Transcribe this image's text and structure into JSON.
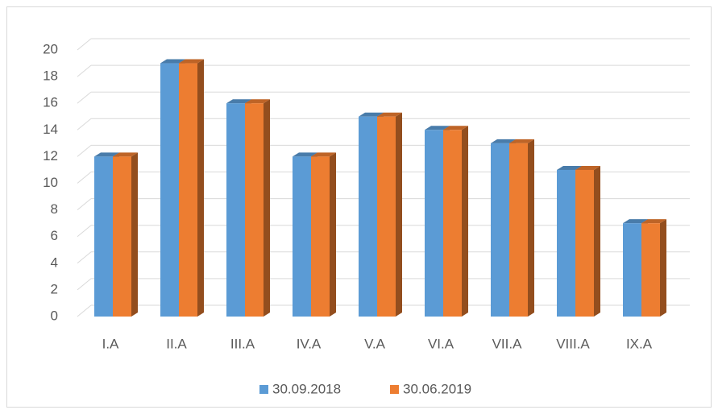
{
  "chart_data": {
    "type": "bar3d",
    "categories": [
      "I.A",
      "II.A",
      "III.A",
      "IV.A",
      "V.A",
      "VI.A",
      "VII.A",
      "VIII.A",
      "IX.A"
    ],
    "series": [
      {
        "name": "30.09.2018",
        "color": "#5b9bd5",
        "values": [
          12,
          19,
          16,
          12,
          15,
          14,
          13,
          11,
          7
        ]
      },
      {
        "name": "30.06.2019",
        "color": "#ed7d31",
        "values": [
          12,
          19,
          16,
          12,
          15,
          14,
          13,
          11,
          7
        ]
      }
    ],
    "ylim": [
      0,
      20
    ],
    "yticks": [
      0,
      2,
      4,
      6,
      8,
      10,
      12,
      14,
      16,
      18,
      20
    ],
    "grid": true,
    "legend": "bottom"
  }
}
